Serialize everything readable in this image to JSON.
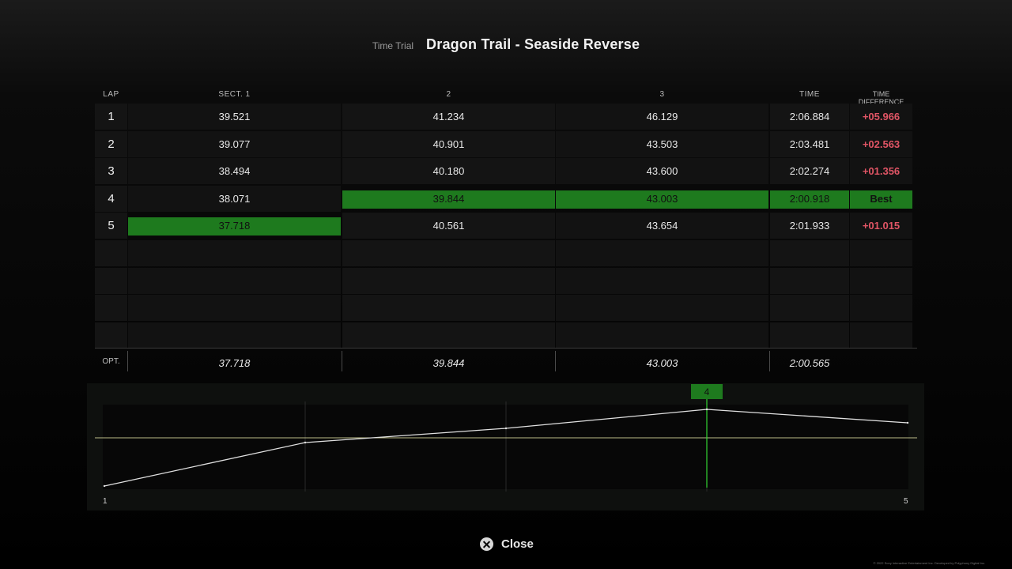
{
  "header": {
    "mode": "Time Trial",
    "track": "Dragon Trail - Seaside Reverse"
  },
  "columns": {
    "lap": "LAP",
    "s1": "SECT. 1",
    "s2": "2",
    "s3": "3",
    "time": "TIME",
    "diff": "TIME DIFFERENCE"
  },
  "laps": [
    {
      "lap": "1",
      "s1": "39.521",
      "s2": "41.234",
      "s3": "46.129",
      "time": "2:06.884",
      "diff": "+05.966"
    },
    {
      "lap": "2",
      "s1": "39.077",
      "s2": "40.901",
      "s3": "43.503",
      "time": "2:03.481",
      "diff": "+02.563"
    },
    {
      "lap": "3",
      "s1": "38.494",
      "s2": "40.180",
      "s3": "43.600",
      "time": "2:02.274",
      "diff": "+01.356"
    },
    {
      "lap": "4",
      "s1": "38.071",
      "s2": "39.844",
      "s3": "43.003",
      "time": "2:00.918",
      "diff": "Best"
    },
    {
      "lap": "5",
      "s1": "37.718",
      "s2": "40.561",
      "s3": "43.654",
      "time": "2:01.933",
      "diff": "+01.015"
    }
  ],
  "best_sectors": {
    "s1": 5,
    "s2": 4,
    "s3": 4,
    "time": 4,
    "diff": 4
  },
  "optimal": {
    "label": "OPT.",
    "s1": "37.718",
    "s2": "39.844",
    "s3": "43.003",
    "time": "2:00.565"
  },
  "graph": {
    "selected_lap": "4",
    "x_start_label": "1",
    "x_end_label": "5",
    "series": [
      0.0,
      0.55,
      0.73,
      0.97,
      0.8
    ],
    "reference_level": 0.61,
    "colors": {
      "line": "#e0e0e0",
      "reference": "#e8e8a8",
      "marker": "#1e7a1e",
      "cursor": "#33d633"
    }
  },
  "close_label": "Close",
  "copyright": "© 2022 Sony Interactive Entertainment Inc. Developed by Polyphony Digital Inc."
}
